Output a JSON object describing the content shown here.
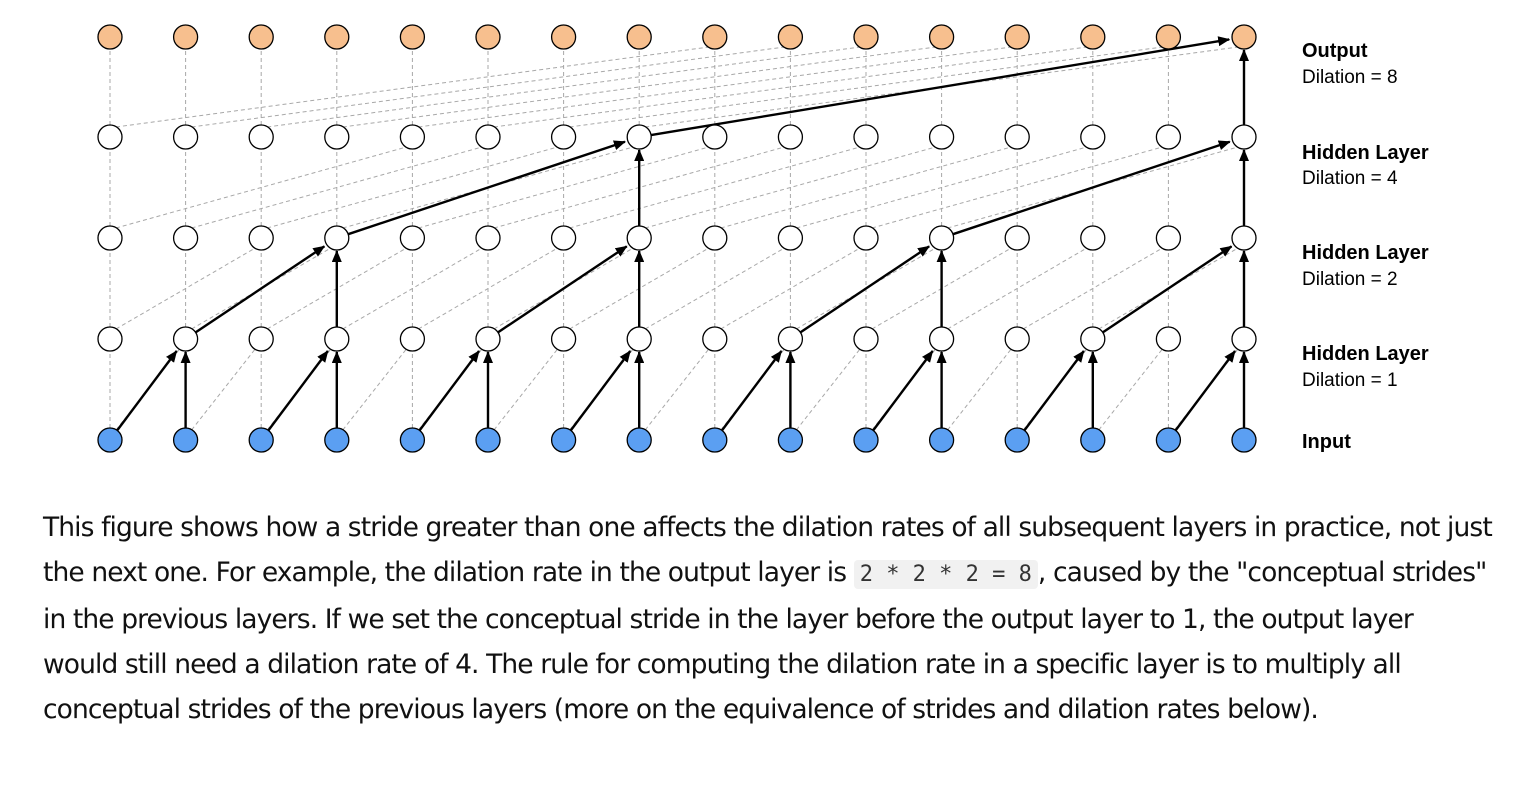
{
  "diagram": {
    "columns": 16,
    "colors": {
      "input_fill": "#5b9ff2",
      "hidden_fill": "#ffffff",
      "output_fill": "#f7bf8e",
      "node_stroke": "#000000",
      "edge_active": "#000000",
      "edge_passive": "#a8a8a8"
    },
    "layers": [
      {
        "title": "Output",
        "subtitle": "Dilation = 8",
        "dilation": 8,
        "kind": "output"
      },
      {
        "title": "Hidden Layer",
        "subtitle": "Dilation = 4",
        "dilation": 4,
        "kind": "hidden"
      },
      {
        "title": "Hidden Layer",
        "subtitle": "Dilation = 2",
        "dilation": 2,
        "kind": "hidden"
      },
      {
        "title": "Hidden Layer",
        "subtitle": "Dilation = 1",
        "dilation": 1,
        "kind": "hidden"
      },
      {
        "title": "Input",
        "subtitle": "",
        "dilation": 1,
        "kind": "input"
      }
    ]
  },
  "caption": {
    "part1": "This figure shows how a stride greater than one affects the dilation rates of all subsequent layers in practice, not just the next one. For example, the dilation rate in the output layer is ",
    "code": "2 * 2 * 2 = 8",
    "part2": ", caused by the \"conceptual strides\" in the previous layers. If we set the conceptual stride in the layer before the output layer to 1, the output layer would still need a dilation rate of 4. The rule for computing the dilation rate in a specific layer is to multiply all conceptual strides of the previous layers (more on the equivalence of strides and dilation rates below)."
  }
}
